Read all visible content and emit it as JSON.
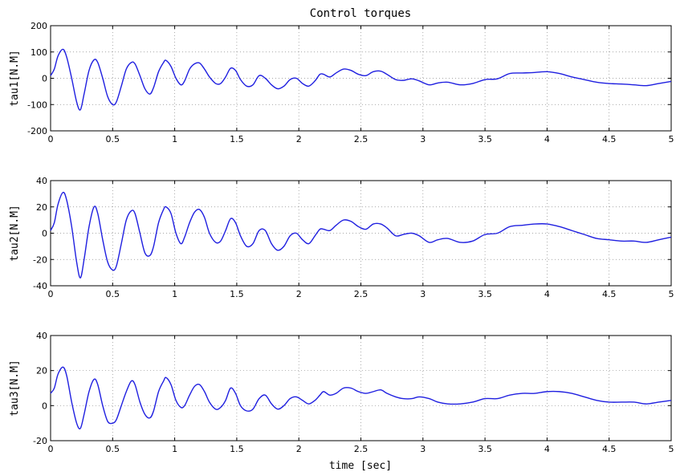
{
  "chart_data": {
    "type": "line",
    "title": "Control torques",
    "xlabel": "time [sec]",
    "xlim": [
      0,
      5
    ],
    "x_ticks": [
      "0",
      "0.5",
      "1",
      "1.5",
      "2",
      "2.5",
      "3",
      "3.5",
      "4",
      "4.5",
      "5"
    ],
    "grid": true,
    "line_color": "#1f1fe0",
    "subplots": [
      {
        "ylabel": "tau1[N.M]",
        "ylim": [
          -200,
          200
        ],
        "y_ticks": [
          "200",
          "100",
          "0",
          "-100",
          "-200"
        ],
        "series": [
          {
            "x": [
              0,
              0.03,
              0.06,
              0.1,
              0.13,
              0.17,
              0.21,
              0.24,
              0.27,
              0.31,
              0.35,
              0.38,
              0.42,
              0.46,
              0.5,
              0.53,
              0.57,
              0.61,
              0.65,
              0.68,
              0.72,
              0.76,
              0.8,
              0.83,
              0.87,
              0.91,
              0.93,
              0.97,
              1.01,
              1.05,
              1.08,
              1.12,
              1.16,
              1.2,
              1.24,
              1.28,
              1.33,
              1.37,
              1.41,
              1.45,
              1.49,
              1.53,
              1.58,
              1.63,
              1.68,
              1.73,
              1.78,
              1.83,
              1.88,
              1.93,
              1.98,
              2.03,
              2.08,
              2.13,
              2.17,
              2.2,
              2.25,
              2.3,
              2.36,
              2.42,
              2.48,
              2.54,
              2.6,
              2.66,
              2.71,
              2.78,
              2.84,
              2.91,
              2.97,
              3.05,
              3.12,
              3.2,
              3.3,
              3.4,
              3.5,
              3.6,
              3.7,
              3.8,
              3.9,
              4.0,
              4.1,
              4.2,
              4.3,
              4.4,
              4.5,
              4.6,
              4.7,
              4.8,
              4.9,
              5.0
            ],
            "y": [
              10,
              35,
              85,
              110,
              80,
              0,
              -90,
              -120,
              -60,
              30,
              70,
              60,
              0,
              -70,
              -100,
              -90,
              -30,
              35,
              60,
              55,
              10,
              -40,
              -60,
              -35,
              25,
              60,
              68,
              45,
              0,
              -25,
              -10,
              35,
              55,
              58,
              35,
              5,
              -20,
              -20,
              5,
              38,
              30,
              -5,
              -30,
              -25,
              10,
              0,
              -25,
              -40,
              -30,
              -5,
              0,
              -20,
              -30,
              -10,
              15,
              15,
              5,
              20,
              35,
              30,
              15,
              10,
              25,
              27,
              15,
              -5,
              -8,
              -2,
              -10,
              -25,
              -18,
              -15,
              -25,
              -20,
              -5,
              -2,
              18,
              20,
              22,
              25,
              18,
              5,
              -5,
              -15,
              -20,
              -22,
              -25,
              -28,
              -20,
              -12
            ]
          }
        ]
      },
      {
        "ylabel": "tau2[N.M]",
        "ylim": [
          -40,
          40
        ],
        "y_ticks": [
          "40",
          "20",
          "0",
          "-20",
          "-40"
        ],
        "series": [
          {
            "x": [
              0,
              0.03,
              0.06,
              0.1,
              0.13,
              0.17,
              0.21,
              0.24,
              0.27,
              0.31,
              0.35,
              0.38,
              0.42,
              0.46,
              0.5,
              0.53,
              0.57,
              0.61,
              0.65,
              0.68,
              0.72,
              0.76,
              0.8,
              0.83,
              0.87,
              0.91,
              0.93,
              0.97,
              1.01,
              1.05,
              1.08,
              1.12,
              1.16,
              1.2,
              1.24,
              1.28,
              1.33,
              1.37,
              1.41,
              1.45,
              1.49,
              1.53,
              1.58,
              1.63,
              1.68,
              1.73,
              1.78,
              1.83,
              1.88,
              1.93,
              1.98,
              2.03,
              2.08,
              2.13,
              2.17,
              2.2,
              2.25,
              2.3,
              2.36,
              2.42,
              2.48,
              2.54,
              2.6,
              2.66,
              2.71,
              2.78,
              2.84,
              2.91,
              2.97,
              3.05,
              3.12,
              3.2,
              3.3,
              3.4,
              3.5,
              3.6,
              3.7,
              3.8,
              3.9,
              4.0,
              4.1,
              4.2,
              4.3,
              4.4,
              4.5,
              4.6,
              4.7,
              4.8,
              4.9,
              5.0
            ],
            "y": [
              2,
              8,
              22,
              31,
              25,
              5,
              -22,
              -34,
              -20,
              5,
              20,
              15,
              -5,
              -22,
              -28,
              -25,
              -8,
              10,
              17,
              15,
              0,
              -15,
              -17,
              -10,
              8,
              18,
              20,
              15,
              0,
              -8,
              -3,
              8,
              16,
              18,
              12,
              0,
              -7,
              -6,
              2,
              11,
              8,
              -2,
              -10,
              -8,
              2,
              2,
              -8,
              -13,
              -10,
              -2,
              0,
              -5,
              -8,
              -2,
              3,
              3,
              2,
              6,
              10,
              9,
              5,
              3,
              7,
              7,
              4,
              -2,
              -1,
              0,
              -2,
              -7,
              -5,
              -4,
              -7,
              -6,
              -1,
              0,
              5,
              6,
              7,
              7,
              5,
              2,
              -1,
              -4,
              -5,
              -6,
              -6,
              -7,
              -5,
              -3
            ]
          }
        ]
      },
      {
        "ylabel": "tau3[N.M]",
        "ylim": [
          -20,
          40
        ],
        "y_ticks": [
          "40",
          "20",
          "0",
          "-20"
        ],
        "series": [
          {
            "x": [
              0,
              0.03,
              0.06,
              0.1,
              0.13,
              0.17,
              0.21,
              0.24,
              0.27,
              0.31,
              0.35,
              0.38,
              0.42,
              0.46,
              0.5,
              0.53,
              0.57,
              0.61,
              0.65,
              0.68,
              0.72,
              0.76,
              0.8,
              0.83,
              0.87,
              0.91,
              0.93,
              0.97,
              1.01,
              1.05,
              1.08,
              1.12,
              1.16,
              1.2,
              1.24,
              1.28,
              1.33,
              1.37,
              1.41,
              1.45,
              1.49,
              1.53,
              1.58,
              1.63,
              1.68,
              1.73,
              1.78,
              1.83,
              1.88,
              1.93,
              1.98,
              2.03,
              2.08,
              2.13,
              2.17,
              2.2,
              2.25,
              2.3,
              2.36,
              2.42,
              2.48,
              2.54,
              2.6,
              2.66,
              2.71,
              2.78,
              2.84,
              2.91,
              2.97,
              3.05,
              3.12,
              3.2,
              3.3,
              3.4,
              3.5,
              3.6,
              3.7,
              3.8,
              3.9,
              4.0,
              4.1,
              4.2,
              4.3,
              4.4,
              4.5,
              4.6,
              4.7,
              4.8,
              4.9,
              5.0
            ],
            "y": [
              7,
              10,
              18,
              22,
              17,
              2,
              -10,
              -13,
              -5,
              8,
              15,
              12,
              0,
              -9,
              -10,
              -8,
              0,
              8,
              14,
              12,
              2,
              -5,
              -7,
              -3,
              8,
              14,
              16,
              12,
              3,
              -1,
              0,
              6,
              11,
              12,
              8,
              2,
              -2,
              -1,
              3,
              10,
              7,
              0,
              -3,
              -2,
              4,
              6,
              1,
              -2,
              0,
              4,
              5,
              3,
              1,
              3,
              6,
              8,
              6,
              7,
              10,
              10,
              8,
              7,
              8,
              9,
              7,
              5,
              4,
              4,
              5,
              4,
              2,
              1,
              1,
              2,
              4,
              4,
              6,
              7,
              7,
              8,
              8,
              7,
              5,
              3,
              2,
              2,
              2,
              1,
              2,
              3
            ]
          }
        ]
      }
    ]
  }
}
